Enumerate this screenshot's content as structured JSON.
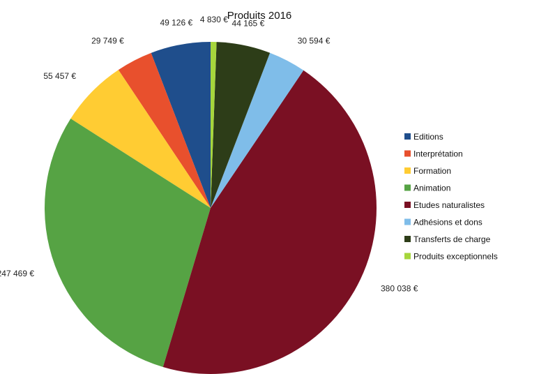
{
  "chart_data": {
    "type": "pie",
    "title": "Produits 2016",
    "legend_position": "right",
    "slices": [
      {
        "label": "Editions",
        "value": 49126,
        "value_label": "49 126 €",
        "color": "#1f4e8c"
      },
      {
        "label": "Interprétation",
        "value": 29749,
        "value_label": "29 749 €",
        "color": "#e8502d"
      },
      {
        "label": "Formation",
        "value": 55457,
        "value_label": "55 457 €",
        "color": "#ffcc33"
      },
      {
        "label": "Animation",
        "value": 247469,
        "value_label": "247 469 €",
        "color": "#56a344"
      },
      {
        "label": "Etudes naturalistes",
        "value": 380038,
        "value_label": "380 038 €",
        "color": "#7a1023"
      },
      {
        "label": "Adhésions et dons",
        "value": 30594,
        "value_label": "30 594 €",
        "color": "#7fbde9"
      },
      {
        "label": "Transferts de charge",
        "value": 44165,
        "value_label": "44 165 €",
        "color": "#2d3d18"
      },
      {
        "label": "Produits exceptionnels",
        "value": 4830,
        "value_label": "4 830 €",
        "color": "#a6d63c"
      }
    ],
    "slice_order": [
      0,
      1,
      2,
      3,
      4,
      5,
      6,
      7
    ]
  }
}
